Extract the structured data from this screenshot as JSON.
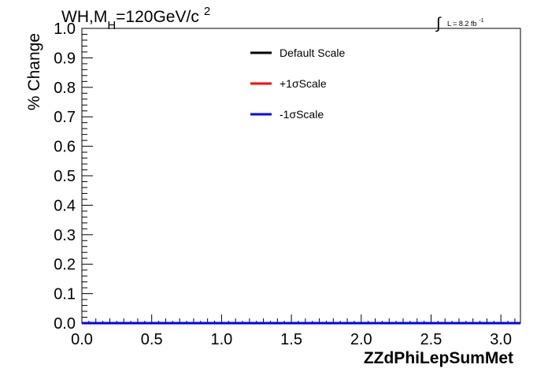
{
  "chart_data": {
    "type": "line",
    "title": {
      "prefix": "WH,M",
      "subscript": "H",
      "mid": "=120GeV/c",
      "superscript": "2"
    },
    "luminosity": {
      "integral": "∫",
      "text": "L = 8.2 fb",
      "superscript": "-1"
    },
    "xlabel": "ZZdPhiLepSumMet",
    "ylabel": "% Change",
    "xlim": [
      0,
      3.14
    ],
    "ylim": [
      0,
      1.0
    ],
    "xticks": [
      0.0,
      0.5,
      1.0,
      1.5,
      2.0,
      2.5,
      3.0
    ],
    "xtick_labels": [
      "0.0",
      "0.5",
      "1.0",
      "1.5",
      "2.0",
      "2.5",
      "3.0"
    ],
    "yticks": [
      0.0,
      0.1,
      0.2,
      0.3,
      0.4,
      0.5,
      0.6,
      0.7,
      0.8,
      0.9,
      1.0
    ],
    "ytick_labels": [
      "0.0",
      "0.1",
      "0.2",
      "0.3",
      "0.4",
      "0.5",
      "0.6",
      "0.7",
      "0.8",
      "0.9",
      "1.0"
    ],
    "legend_position": "top-center",
    "series": [
      {
        "name": "Default Scale",
        "color": "#000000",
        "x": [
          0.0,
          3.14
        ],
        "y": [
          0.0,
          0.0
        ]
      },
      {
        "name": "+1σScale",
        "color": "#ff0000",
        "x": [
          0.0,
          3.14
        ],
        "y": [
          0.0,
          0.0
        ]
      },
      {
        "name": "-1σScale",
        "color": "#0000ff",
        "x": [
          0.0,
          3.14
        ],
        "y": [
          0.0,
          0.0
        ]
      }
    ]
  }
}
